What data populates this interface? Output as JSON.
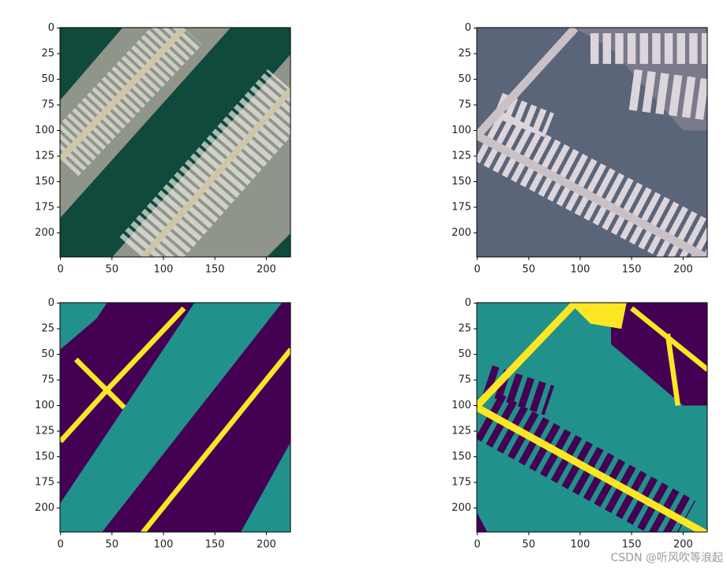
{
  "chart_data": [
    {
      "type": "image",
      "xlim": [
        -0.5,
        223.5
      ],
      "ylim": [
        223.5,
        -0.5
      ],
      "xticks": [
        0,
        50,
        100,
        150,
        200
      ],
      "yticks": [
        0,
        25,
        50,
        75,
        100,
        125,
        150,
        175,
        200
      ]
    },
    {
      "type": "image",
      "xlim": [
        -0.5,
        223.5
      ],
      "ylim": [
        223.5,
        -0.5
      ],
      "xticks": [
        0,
        50,
        100,
        150,
        200
      ],
      "yticks": [
        0,
        25,
        50,
        75,
        100,
        125,
        150,
        175,
        200
      ]
    },
    {
      "type": "image",
      "xlim": [
        -0.5,
        223.5
      ],
      "ylim": [
        223.5,
        -0.5
      ],
      "xticks": [
        0,
        50,
        100,
        150,
        200
      ],
      "yticks": [
        0,
        25,
        50,
        75,
        100,
        125,
        150,
        175,
        200
      ]
    },
    {
      "type": "image",
      "xlim": [
        -0.5,
        223.5
      ],
      "ylim": [
        223.5,
        -0.5
      ],
      "xticks": [
        0,
        50,
        100,
        150,
        200
      ],
      "yticks": [
        0,
        25,
        50,
        75,
        100,
        125,
        150,
        175,
        200
      ]
    }
  ],
  "watermark": "CSDN @听风吹等浪起"
}
